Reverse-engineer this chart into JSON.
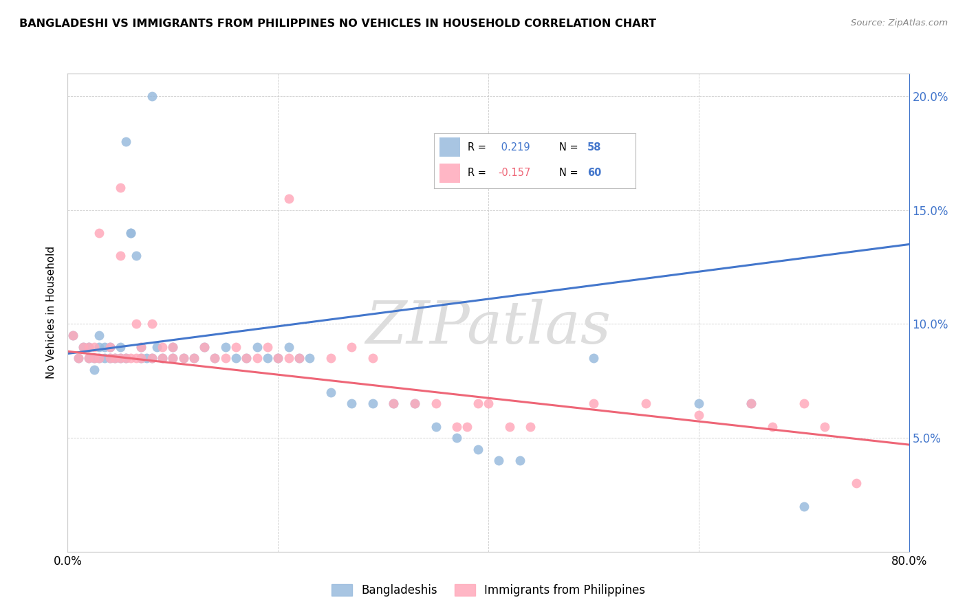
{
  "title": "BANGLADESHI VS IMMIGRANTS FROM PHILIPPINES NO VEHICLES IN HOUSEHOLD CORRELATION CHART",
  "source": "Source: ZipAtlas.com",
  "ylabel": "No Vehicles in Household",
  "legend_blue": {
    "R": 0.219,
    "N": 58,
    "label": "Bangladeshis"
  },
  "legend_pink": {
    "R": -0.157,
    "N": 60,
    "label": "Immigrants from Philippines"
  },
  "blue_color": "#99bbdd",
  "pink_color": "#ffaabb",
  "blue_line_color": "#4477cc",
  "pink_line_color": "#ee6677",
  "xmin": 0.0,
  "xmax": 0.8,
  "ymin": 0.0,
  "ymax": 0.21,
  "yticks": [
    0.05,
    0.1,
    0.15,
    0.2
  ],
  "ytick_labels": [
    "5.0%",
    "10.0%",
    "15.0%",
    "20.0%"
  ],
  "xticks": [
    0.0,
    0.2,
    0.4,
    0.6,
    0.8
  ],
  "blue_scatter_x": [
    0.005,
    0.01,
    0.015,
    0.02,
    0.02,
    0.025,
    0.025,
    0.03,
    0.03,
    0.03,
    0.035,
    0.035,
    0.04,
    0.04,
    0.045,
    0.05,
    0.05,
    0.055,
    0.06,
    0.06,
    0.065,
    0.07,
    0.07,
    0.075,
    0.08,
    0.085,
    0.09,
    0.1,
    0.1,
    0.11,
    0.12,
    0.13,
    0.14,
    0.15,
    0.16,
    0.17,
    0.18,
    0.19,
    0.2,
    0.21,
    0.22,
    0.23,
    0.25,
    0.27,
    0.29,
    0.31,
    0.33,
    0.35,
    0.37,
    0.39,
    0.41,
    0.43,
    0.5,
    0.6,
    0.65,
    0.7,
    0.055,
    0.08
  ],
  "blue_scatter_y": [
    0.095,
    0.085,
    0.09,
    0.085,
    0.09,
    0.08,
    0.085,
    0.085,
    0.09,
    0.095,
    0.085,
    0.09,
    0.085,
    0.09,
    0.085,
    0.085,
    0.09,
    0.085,
    0.14,
    0.14,
    0.13,
    0.085,
    0.09,
    0.085,
    0.085,
    0.09,
    0.085,
    0.085,
    0.09,
    0.085,
    0.085,
    0.09,
    0.085,
    0.09,
    0.085,
    0.085,
    0.09,
    0.085,
    0.085,
    0.09,
    0.085,
    0.085,
    0.07,
    0.065,
    0.065,
    0.065,
    0.065,
    0.055,
    0.05,
    0.045,
    0.04,
    0.04,
    0.085,
    0.065,
    0.065,
    0.02,
    0.18,
    0.2
  ],
  "pink_scatter_x": [
    0.005,
    0.01,
    0.015,
    0.02,
    0.02,
    0.025,
    0.025,
    0.03,
    0.03,
    0.04,
    0.04,
    0.045,
    0.05,
    0.05,
    0.055,
    0.06,
    0.065,
    0.07,
    0.07,
    0.08,
    0.08,
    0.09,
    0.09,
    0.1,
    0.1,
    0.11,
    0.12,
    0.13,
    0.14,
    0.15,
    0.16,
    0.17,
    0.18,
    0.19,
    0.2,
    0.21,
    0.22,
    0.25,
    0.27,
    0.29,
    0.31,
    0.33,
    0.35,
    0.37,
    0.38,
    0.39,
    0.4,
    0.42,
    0.44,
    0.5,
    0.55,
    0.6,
    0.65,
    0.67,
    0.7,
    0.72,
    0.75,
    0.05,
    0.065,
    0.21
  ],
  "pink_scatter_y": [
    0.095,
    0.085,
    0.09,
    0.085,
    0.09,
    0.085,
    0.09,
    0.085,
    0.14,
    0.085,
    0.09,
    0.085,
    0.13,
    0.085,
    0.085,
    0.085,
    0.1,
    0.085,
    0.09,
    0.085,
    0.1,
    0.085,
    0.09,
    0.085,
    0.09,
    0.085,
    0.085,
    0.09,
    0.085,
    0.085,
    0.09,
    0.085,
    0.085,
    0.09,
    0.085,
    0.085,
    0.085,
    0.085,
    0.09,
    0.085,
    0.065,
    0.065,
    0.065,
    0.055,
    0.055,
    0.065,
    0.065,
    0.055,
    0.055,
    0.065,
    0.065,
    0.06,
    0.065,
    0.055,
    0.065,
    0.055,
    0.03,
    0.16,
    0.085,
    0.155
  ],
  "watermark": "ZIPatlas",
  "background_color": "#FFFFFF",
  "blue_line_start_y": 0.087,
  "blue_line_end_y": 0.135,
  "pink_line_start_y": 0.088,
  "pink_line_end_y": 0.047
}
